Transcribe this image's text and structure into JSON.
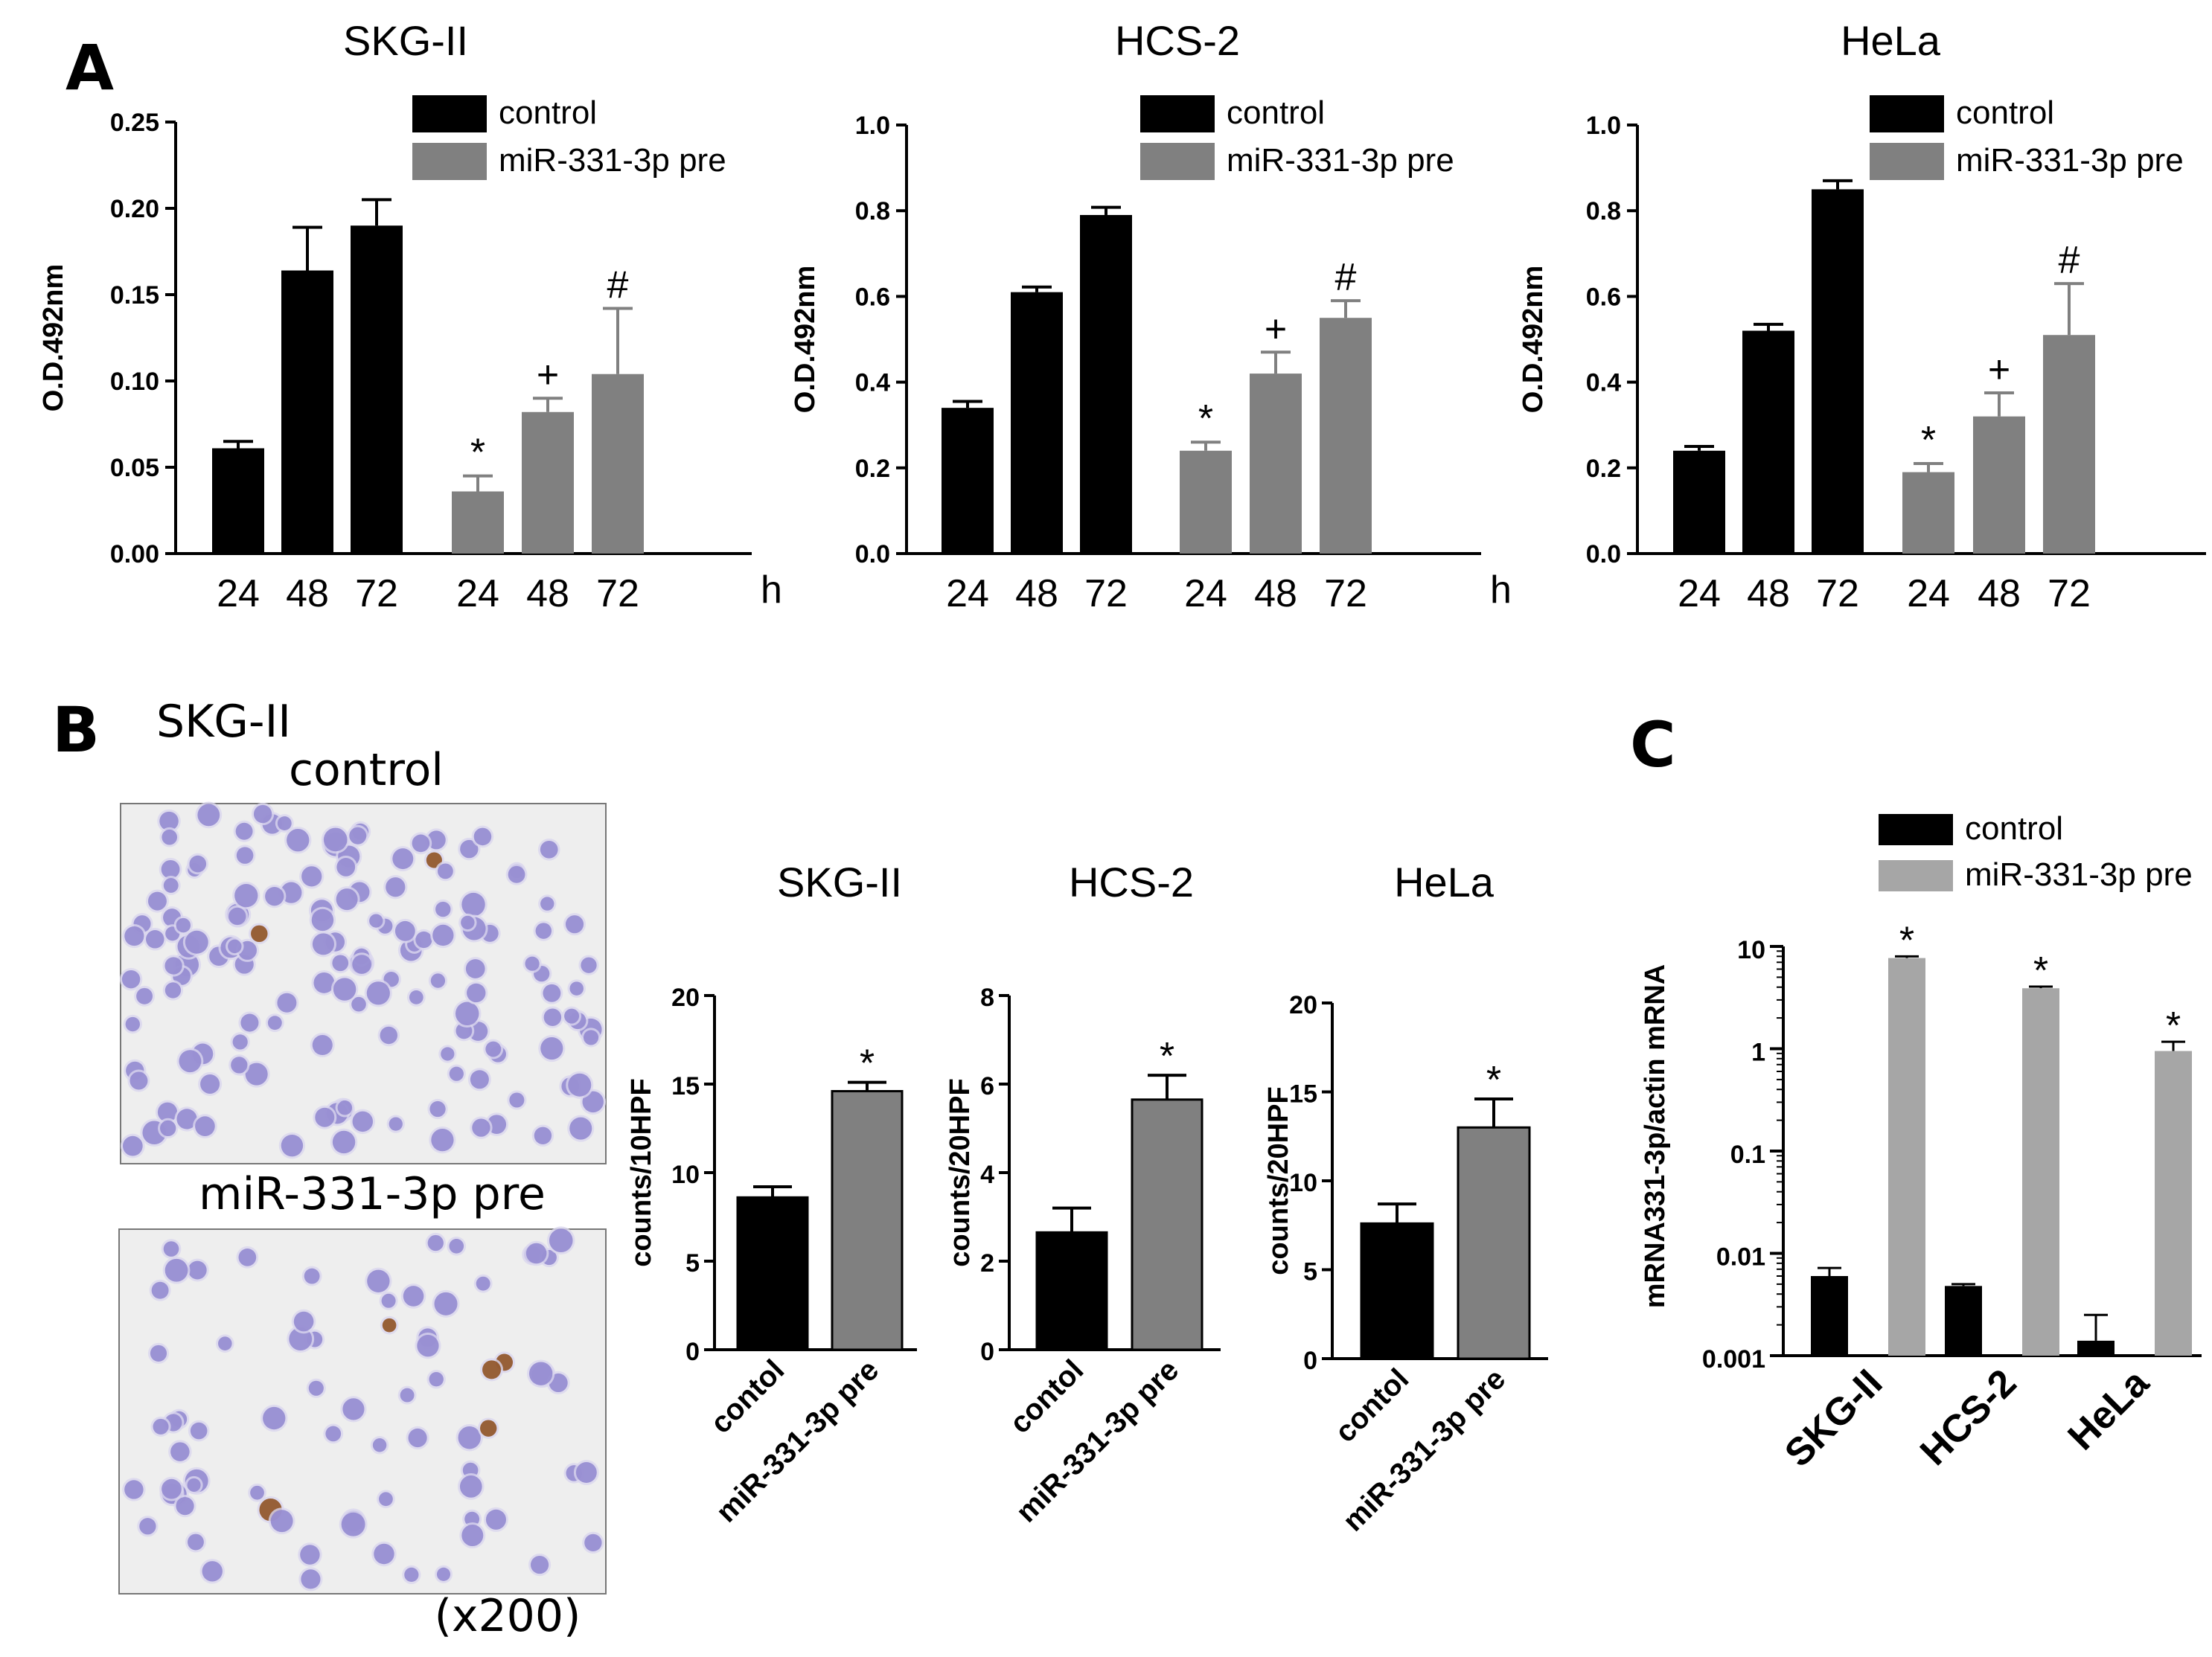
{
  "panels": {
    "a_label": "A",
    "b_label": "B",
    "c_label": "C",
    "b_cell_line": "SKG-II",
    "b_photo_control": "control",
    "b_photo_treated": "miR-331-3p pre",
    "b_magnification": "(x200)"
  },
  "colors": {
    "control": "#000000",
    "treated_a": "#808080",
    "treated_c": "#a6a6a6",
    "photo_bg": "#eeeeee",
    "cell": "#8f86cf",
    "cell_stained": "#8b4a18"
  },
  "chart_data": [
    {
      "id": "A-SKG-II",
      "type": "bar",
      "title": "SKG-II",
      "ylabel": "O.D.492nm",
      "xunit": "h",
      "ylim": [
        0,
        0.25
      ],
      "yticks": [
        "0.00",
        "0.05",
        "0.10",
        "0.15",
        "0.20",
        "0.25"
      ],
      "categories": [
        "24",
        "48",
        "72",
        "24",
        "48",
        "72"
      ],
      "series": [
        {
          "name": "control",
          "color": "#000000",
          "values": [
            0.061,
            0.164,
            0.19,
            null,
            null,
            null
          ],
          "errors": [
            0.004,
            0.025,
            0.015,
            null,
            null,
            null
          ],
          "marks": [
            "",
            "",
            "",
            "",
            "",
            ""
          ]
        },
        {
          "name": "miR-331-3p pre",
          "color": "#808080",
          "values": [
            null,
            null,
            null,
            0.036,
            0.082,
            0.104
          ],
          "errors": [
            null,
            null,
            null,
            0.009,
            0.008,
            0.038
          ],
          "marks": [
            "",
            "",
            "",
            "*",
            "+",
            "#"
          ]
        }
      ]
    },
    {
      "id": "A-HCS-2",
      "type": "bar",
      "title": "HCS-2",
      "ylabel": "O.D.492nm",
      "xunit": "h",
      "ylim": [
        0,
        1.0
      ],
      "yticks": [
        "0.0",
        "0.2",
        "0.4",
        "0.6",
        "0.8",
        "1.0"
      ],
      "categories": [
        "24",
        "48",
        "72",
        "24",
        "48",
        "72"
      ],
      "series": [
        {
          "name": "control",
          "color": "#000000",
          "values": [
            0.34,
            0.61,
            0.79,
            null,
            null,
            null
          ],
          "errors": [
            0.015,
            0.012,
            0.018,
            null,
            null,
            null
          ],
          "marks": [
            "",
            "",
            "",
            "",
            "",
            ""
          ]
        },
        {
          "name": "miR-331-3p pre",
          "color": "#808080",
          "values": [
            null,
            null,
            null,
            0.24,
            0.42,
            0.55
          ],
          "errors": [
            null,
            null,
            null,
            0.02,
            0.05,
            0.04
          ],
          "marks": [
            "",
            "",
            "",
            "*",
            "+",
            "#"
          ]
        }
      ]
    },
    {
      "id": "A-HeLa",
      "type": "bar",
      "title": "HeLa",
      "ylabel": "O.D.492nm",
      "xunit": "h",
      "ylim": [
        0,
        1.0
      ],
      "yticks": [
        "0.0",
        "0.2",
        "0.4",
        "0.6",
        "0.8",
        "1.0"
      ],
      "categories": [
        "24",
        "48",
        "72",
        "24",
        "48",
        "72"
      ],
      "series": [
        {
          "name": "control",
          "color": "#000000",
          "values": [
            0.24,
            0.52,
            0.85,
            null,
            null,
            null
          ],
          "errors": [
            0.01,
            0.015,
            0.02,
            null,
            null,
            null
          ],
          "marks": [
            "",
            "",
            "",
            "",
            "",
            ""
          ]
        },
        {
          "name": "miR-331-3p pre",
          "color": "#808080",
          "values": [
            null,
            null,
            null,
            0.19,
            0.32,
            0.51
          ],
          "errors": [
            null,
            null,
            null,
            0.02,
            0.055,
            0.12
          ],
          "marks": [
            "",
            "",
            "",
            "*",
            "+",
            "#"
          ]
        }
      ]
    },
    {
      "id": "B-SKG-II",
      "type": "bar",
      "title": "SKG-II",
      "ylabel": "counts/10HPF",
      "ylim": [
        0,
        20
      ],
      "yticks": [
        "0",
        "5",
        "10",
        "15",
        "20"
      ],
      "categories": [
        "contol",
        "miR-331-3p pre"
      ],
      "values": [
        8.6,
        14.6
      ],
      "errors": [
        0.6,
        0.5
      ],
      "colors": [
        "#000000",
        "#808080"
      ],
      "marks": [
        "",
        "*"
      ]
    },
    {
      "id": "B-HCS-2",
      "type": "bar",
      "title": "HCS-2",
      "ylabel": "counts/20HPF",
      "ylim": [
        0,
        8
      ],
      "yticks": [
        "0",
        "2",
        "4",
        "6",
        "8"
      ],
      "categories": [
        "contol",
        "miR-331-3p pre"
      ],
      "values": [
        2.65,
        5.65
      ],
      "errors": [
        0.55,
        0.55
      ],
      "colors": [
        "#000000",
        "#808080"
      ],
      "marks": [
        "",
        "*"
      ]
    },
    {
      "id": "B-HeLa",
      "type": "bar",
      "title": "HeLa",
      "ylabel": "counts/20HPF",
      "ylim": [
        0,
        20
      ],
      "yticks": [
        "0",
        "5",
        "10",
        "15",
        "20"
      ],
      "categories": [
        "contol",
        "miR-331-3p pre"
      ],
      "values": [
        7.6,
        13.0
      ],
      "errors": [
        1.1,
        1.6
      ],
      "colors": [
        "#000000",
        "#808080"
      ],
      "marks": [
        "",
        "*"
      ]
    },
    {
      "id": "C",
      "type": "bar",
      "title": "",
      "ylabel": "mRNA331-3p/actin mRNA",
      "yscale": "log",
      "ylim": [
        0.001,
        10
      ],
      "yticks": [
        "0.001",
        "0.01",
        "0.1",
        "1",
        "10"
      ],
      "categories": [
        "SKG-II",
        "HCS-2",
        "HeLa"
      ],
      "series": [
        {
          "name": "control",
          "color": "#000000",
          "values": [
            0.006,
            0.0048,
            0.0014
          ],
          "errors": [
            0.0012,
            0.0002,
            0.0011
          ],
          "marks": [
            "",
            "",
            ""
          ]
        },
        {
          "name": "miR-331-3p pre",
          "color": "#a6a6a6",
          "values": [
            7.7,
            3.9,
            0.95
          ],
          "errors": [
            0.3,
            0.15,
            0.22
          ],
          "marks": [
            "*",
            "*",
            "*"
          ]
        }
      ]
    }
  ]
}
